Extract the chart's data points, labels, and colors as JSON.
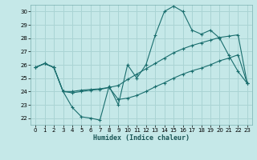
{
  "xlabel": "Humidex (Indice chaleur)",
  "bg_color": "#c5e8e8",
  "grid_color": "#aad4d4",
  "line_color": "#1a6e6e",
  "xlim": [
    -0.5,
    23.5
  ],
  "ylim": [
    21.5,
    30.5
  ],
  "yticks": [
    22,
    23,
    24,
    25,
    26,
    27,
    28,
    29,
    30
  ],
  "xticks": [
    0,
    1,
    2,
    3,
    4,
    5,
    6,
    7,
    8,
    9,
    10,
    11,
    12,
    13,
    14,
    15,
    16,
    17,
    18,
    19,
    20,
    21,
    22,
    23
  ],
  "line1_x": [
    0,
    1,
    2,
    3,
    4,
    5,
    6,
    7,
    8,
    9,
    10,
    11,
    12,
    13,
    14,
    15,
    16,
    17,
    18,
    19,
    20,
    21,
    22,
    23
  ],
  "line1_y": [
    25.8,
    26.1,
    25.8,
    24.0,
    22.8,
    22.1,
    22.0,
    21.85,
    24.4,
    23.0,
    26.0,
    25.0,
    26.0,
    28.2,
    30.0,
    30.4,
    30.0,
    28.6,
    28.3,
    28.6,
    28.0,
    26.7,
    25.5,
    24.6
  ],
  "line2_x": [
    0,
    1,
    2,
    3,
    4,
    5,
    6,
    7,
    8,
    9,
    10,
    11,
    12,
    13,
    14,
    15,
    16,
    17,
    18,
    19,
    20,
    21,
    22,
    23
  ],
  "line2_y": [
    25.8,
    26.1,
    25.8,
    24.0,
    23.9,
    24.0,
    24.1,
    24.15,
    24.3,
    24.45,
    24.9,
    25.3,
    25.7,
    26.1,
    26.5,
    26.9,
    27.2,
    27.45,
    27.65,
    27.85,
    28.05,
    28.15,
    28.25,
    24.6
  ],
  "line3_x": [
    0,
    1,
    2,
    3,
    4,
    5,
    6,
    7,
    8,
    9,
    10,
    11,
    12,
    13,
    14,
    15,
    16,
    17,
    18,
    19,
    20,
    21,
    22,
    23
  ],
  "line3_y": [
    25.8,
    26.1,
    25.8,
    24.0,
    24.0,
    24.1,
    24.15,
    24.2,
    24.3,
    23.4,
    23.5,
    23.7,
    24.0,
    24.35,
    24.65,
    25.0,
    25.3,
    25.55,
    25.75,
    26.0,
    26.3,
    26.5,
    26.75,
    24.6
  ]
}
